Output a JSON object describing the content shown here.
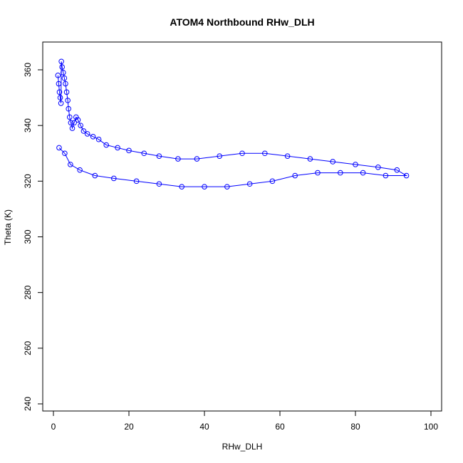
{
  "chart_data": {
    "type": "line",
    "title": "ATOM4 Northbound RHw_DLH",
    "xlabel": "RHw_DLH",
    "ylabel": "Theta (K)",
    "xlim": [
      0,
      100
    ],
    "ylim": [
      240,
      365
    ],
    "xticks": [
      0,
      20,
      40,
      60,
      80,
      100
    ],
    "yticks": [
      240,
      260,
      280,
      300,
      320,
      340,
      360
    ],
    "grid": false,
    "legend": "none",
    "marker": "open-circle",
    "series": [
      {
        "color": "#0000ff",
        "points": [
          [
            1.2,
            358
          ],
          [
            1.4,
            355
          ],
          [
            1.6,
            352
          ],
          [
            1.8,
            350
          ],
          [
            2.0,
            348
          ],
          [
            2.1,
            363
          ],
          [
            2.3,
            361
          ],
          [
            2.6,
            359
          ],
          [
            2.9,
            357
          ],
          [
            3.2,
            355
          ],
          [
            3.5,
            352
          ],
          [
            3.8,
            349
          ],
          [
            4.0,
            346
          ],
          [
            4.3,
            343
          ],
          [
            4.6,
            341
          ],
          [
            5.0,
            339
          ],
          [
            5.5,
            341
          ],
          [
            6.0,
            343
          ],
          [
            6.5,
            342
          ],
          [
            7.2,
            340
          ],
          [
            8.0,
            338
          ],
          [
            9.0,
            337
          ],
          [
            10.5,
            336
          ],
          [
            12.0,
            335
          ],
          [
            14.0,
            333
          ],
          [
            17.0,
            332
          ],
          [
            20.0,
            331
          ],
          [
            24.0,
            330
          ],
          [
            28.0,
            329
          ],
          [
            33.0,
            328
          ],
          [
            38.0,
            328
          ],
          [
            44.0,
            329
          ],
          [
            50.0,
            330
          ],
          [
            56.0,
            330
          ],
          [
            62.0,
            329
          ],
          [
            68.0,
            328
          ],
          [
            74.0,
            327
          ],
          [
            80.0,
            326
          ],
          [
            86.0,
            325
          ],
          [
            91.0,
            324
          ],
          [
            93.5,
            322
          ],
          [
            88.0,
            322
          ],
          [
            82.0,
            323
          ],
          [
            76.0,
            323
          ],
          [
            70.0,
            323
          ],
          [
            64.0,
            322
          ],
          [
            58.0,
            320
          ],
          [
            52.0,
            319
          ],
          [
            46.0,
            318
          ],
          [
            40.0,
            318
          ],
          [
            34.0,
            318
          ],
          [
            28.0,
            319
          ],
          [
            22.0,
            320
          ],
          [
            16.0,
            321
          ],
          [
            11.0,
            322
          ],
          [
            7.0,
            324
          ],
          [
            4.5,
            326
          ],
          [
            3.0,
            330
          ],
          [
            1.5,
            332
          ]
        ]
      }
    ]
  }
}
